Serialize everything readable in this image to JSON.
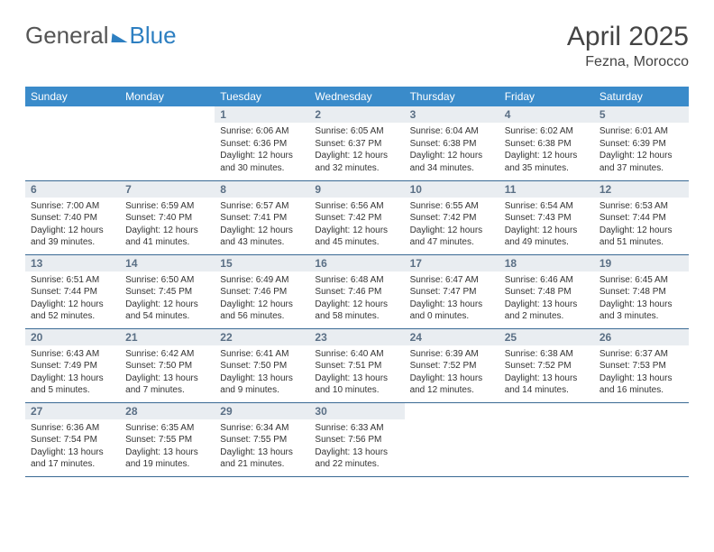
{
  "logo": {
    "part1": "General",
    "part2": "Blue"
  },
  "title": "April 2025",
  "location": "Fezna, Morocco",
  "colors": {
    "header_bg": "#3a8bca",
    "header_text": "#ffffff",
    "daynum_bg": "#e9edf1",
    "daynum_text": "#5a6f85",
    "row_border": "#3a6a94",
    "logo_accent": "#2d7fc1"
  },
  "weekdays": [
    "Sunday",
    "Monday",
    "Tuesday",
    "Wednesday",
    "Thursday",
    "Friday",
    "Saturday"
  ],
  "weeks": [
    [
      {
        "n": "",
        "sr": "",
        "ss": "",
        "dl": ""
      },
      {
        "n": "",
        "sr": "",
        "ss": "",
        "dl": ""
      },
      {
        "n": "1",
        "sr": "Sunrise: 6:06 AM",
        "ss": "Sunset: 6:36 PM",
        "dl": "Daylight: 12 hours and 30 minutes."
      },
      {
        "n": "2",
        "sr": "Sunrise: 6:05 AM",
        "ss": "Sunset: 6:37 PM",
        "dl": "Daylight: 12 hours and 32 minutes."
      },
      {
        "n": "3",
        "sr": "Sunrise: 6:04 AM",
        "ss": "Sunset: 6:38 PM",
        "dl": "Daylight: 12 hours and 34 minutes."
      },
      {
        "n": "4",
        "sr": "Sunrise: 6:02 AM",
        "ss": "Sunset: 6:38 PM",
        "dl": "Daylight: 12 hours and 35 minutes."
      },
      {
        "n": "5",
        "sr": "Sunrise: 6:01 AM",
        "ss": "Sunset: 6:39 PM",
        "dl": "Daylight: 12 hours and 37 minutes."
      }
    ],
    [
      {
        "n": "6",
        "sr": "Sunrise: 7:00 AM",
        "ss": "Sunset: 7:40 PM",
        "dl": "Daylight: 12 hours and 39 minutes."
      },
      {
        "n": "7",
        "sr": "Sunrise: 6:59 AM",
        "ss": "Sunset: 7:40 PM",
        "dl": "Daylight: 12 hours and 41 minutes."
      },
      {
        "n": "8",
        "sr": "Sunrise: 6:57 AM",
        "ss": "Sunset: 7:41 PM",
        "dl": "Daylight: 12 hours and 43 minutes."
      },
      {
        "n": "9",
        "sr": "Sunrise: 6:56 AM",
        "ss": "Sunset: 7:42 PM",
        "dl": "Daylight: 12 hours and 45 minutes."
      },
      {
        "n": "10",
        "sr": "Sunrise: 6:55 AM",
        "ss": "Sunset: 7:42 PM",
        "dl": "Daylight: 12 hours and 47 minutes."
      },
      {
        "n": "11",
        "sr": "Sunrise: 6:54 AM",
        "ss": "Sunset: 7:43 PM",
        "dl": "Daylight: 12 hours and 49 minutes."
      },
      {
        "n": "12",
        "sr": "Sunrise: 6:53 AM",
        "ss": "Sunset: 7:44 PM",
        "dl": "Daylight: 12 hours and 51 minutes."
      }
    ],
    [
      {
        "n": "13",
        "sr": "Sunrise: 6:51 AM",
        "ss": "Sunset: 7:44 PM",
        "dl": "Daylight: 12 hours and 52 minutes."
      },
      {
        "n": "14",
        "sr": "Sunrise: 6:50 AM",
        "ss": "Sunset: 7:45 PM",
        "dl": "Daylight: 12 hours and 54 minutes."
      },
      {
        "n": "15",
        "sr": "Sunrise: 6:49 AM",
        "ss": "Sunset: 7:46 PM",
        "dl": "Daylight: 12 hours and 56 minutes."
      },
      {
        "n": "16",
        "sr": "Sunrise: 6:48 AM",
        "ss": "Sunset: 7:46 PM",
        "dl": "Daylight: 12 hours and 58 minutes."
      },
      {
        "n": "17",
        "sr": "Sunrise: 6:47 AM",
        "ss": "Sunset: 7:47 PM",
        "dl": "Daylight: 13 hours and 0 minutes."
      },
      {
        "n": "18",
        "sr": "Sunrise: 6:46 AM",
        "ss": "Sunset: 7:48 PM",
        "dl": "Daylight: 13 hours and 2 minutes."
      },
      {
        "n": "19",
        "sr": "Sunrise: 6:45 AM",
        "ss": "Sunset: 7:48 PM",
        "dl": "Daylight: 13 hours and 3 minutes."
      }
    ],
    [
      {
        "n": "20",
        "sr": "Sunrise: 6:43 AM",
        "ss": "Sunset: 7:49 PM",
        "dl": "Daylight: 13 hours and 5 minutes."
      },
      {
        "n": "21",
        "sr": "Sunrise: 6:42 AM",
        "ss": "Sunset: 7:50 PM",
        "dl": "Daylight: 13 hours and 7 minutes."
      },
      {
        "n": "22",
        "sr": "Sunrise: 6:41 AM",
        "ss": "Sunset: 7:50 PM",
        "dl": "Daylight: 13 hours and 9 minutes."
      },
      {
        "n": "23",
        "sr": "Sunrise: 6:40 AM",
        "ss": "Sunset: 7:51 PM",
        "dl": "Daylight: 13 hours and 10 minutes."
      },
      {
        "n": "24",
        "sr": "Sunrise: 6:39 AM",
        "ss": "Sunset: 7:52 PM",
        "dl": "Daylight: 13 hours and 12 minutes."
      },
      {
        "n": "25",
        "sr": "Sunrise: 6:38 AM",
        "ss": "Sunset: 7:52 PM",
        "dl": "Daylight: 13 hours and 14 minutes."
      },
      {
        "n": "26",
        "sr": "Sunrise: 6:37 AM",
        "ss": "Sunset: 7:53 PM",
        "dl": "Daylight: 13 hours and 16 minutes."
      }
    ],
    [
      {
        "n": "27",
        "sr": "Sunrise: 6:36 AM",
        "ss": "Sunset: 7:54 PM",
        "dl": "Daylight: 13 hours and 17 minutes."
      },
      {
        "n": "28",
        "sr": "Sunrise: 6:35 AM",
        "ss": "Sunset: 7:55 PM",
        "dl": "Daylight: 13 hours and 19 minutes."
      },
      {
        "n": "29",
        "sr": "Sunrise: 6:34 AM",
        "ss": "Sunset: 7:55 PM",
        "dl": "Daylight: 13 hours and 21 minutes."
      },
      {
        "n": "30",
        "sr": "Sunrise: 6:33 AM",
        "ss": "Sunset: 7:56 PM",
        "dl": "Daylight: 13 hours and 22 minutes."
      },
      {
        "n": "",
        "sr": "",
        "ss": "",
        "dl": ""
      },
      {
        "n": "",
        "sr": "",
        "ss": "",
        "dl": ""
      },
      {
        "n": "",
        "sr": "",
        "ss": "",
        "dl": ""
      }
    ]
  ]
}
